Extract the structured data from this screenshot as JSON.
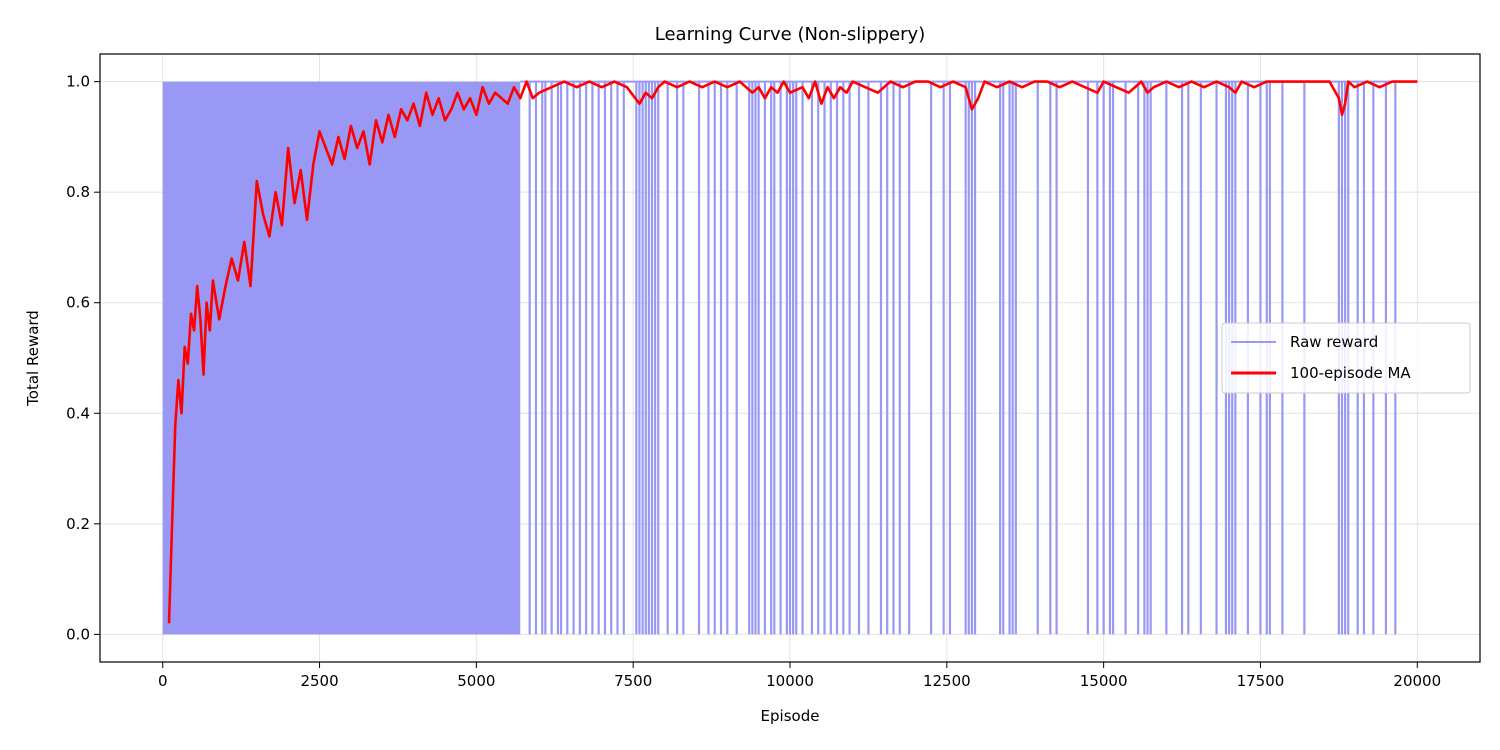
{
  "chart_data": {
    "type": "line",
    "title": "Learning Curve (Non-slippery)",
    "xlabel": "Episode",
    "ylabel": "Total Reward",
    "xlim": [
      -1000,
      21000
    ],
    "ylim": [
      -0.05,
      1.05
    ],
    "xticks": [
      0,
      2500,
      5000,
      7500,
      10000,
      12500,
      15000,
      17500,
      20000
    ],
    "xtick_labels": [
      "0",
      "2500",
      "5000",
      "7500",
      "10000",
      "12500",
      "15000",
      "17500",
      "20000"
    ],
    "yticks": [
      0.0,
      0.2,
      0.4,
      0.6,
      0.8,
      1.0
    ],
    "ytick_labels": [
      "0.0",
      "0.2",
      "0.4",
      "0.6",
      "0.8",
      "1.0"
    ],
    "grid": true,
    "legend_position": "center-right",
    "series": [
      {
        "name": "Raw reward",
        "color": "#9999f5",
        "style": "raw-binary-vlines",
        "dense_range": [
          0,
          5700
        ],
        "failure_episodes": [
          5850,
          5950,
          6050,
          6100,
          6200,
          6300,
          6350,
          6450,
          6550,
          6650,
          6750,
          6850,
          6950,
          7050,
          7150,
          7250,
          7350,
          7550,
          7600,
          7650,
          7700,
          7750,
          7800,
          7850,
          7900,
          8050,
          8200,
          8300,
          8550,
          8700,
          8800,
          8900,
          9000,
          9150,
          9350,
          9400,
          9450,
          9500,
          9600,
          9700,
          9750,
          9850,
          9950,
          10000,
          10050,
          10100,
          10200,
          10350,
          10450,
          10550,
          10650,
          10750,
          10850,
          10950,
          11100,
          11250,
          11450,
          11550,
          11650,
          11750,
          11900,
          12250,
          12450,
          12550,
          12800,
          12850,
          12900,
          12950,
          13350,
          13400,
          13500,
          13550,
          13600,
          13950,
          14150,
          14250,
          14750,
          14900,
          15000,
          15100,
          15150,
          15350,
          15550,
          15650,
          15700,
          15750,
          16000,
          16250,
          16350,
          16550,
          16800,
          16950,
          17000,
          17050,
          17100,
          17300,
          17500,
          17600,
          17650,
          17850,
          18200,
          18750,
          18800,
          18850,
          18900,
          19050,
          19150,
          19300,
          19500,
          19650
        ]
      },
      {
        "name": "100-episode MA",
        "color": "#ff0000",
        "x": [
          100,
          150,
          200,
          250,
          300,
          350,
          400,
          450,
          500,
          550,
          600,
          650,
          700,
          750,
          800,
          900,
          1000,
          1100,
          1200,
          1300,
          1400,
          1500,
          1600,
          1700,
          1800,
          1900,
          2000,
          2100,
          2200,
          2300,
          2400,
          2500,
          2600,
          2700,
          2800,
          2900,
          3000,
          3100,
          3200,
          3300,
          3400,
          3500,
          3600,
          3700,
          3800,
          3900,
          4000,
          4100,
          4200,
          4300,
          4400,
          4500,
          4600,
          4700,
          4800,
          4900,
          5000,
          5100,
          5200,
          5300,
          5400,
          5500,
          5600,
          5700,
          5800,
          5900,
          6000,
          6200,
          6400,
          6600,
          6800,
          7000,
          7200,
          7400,
          7600,
          7700,
          7800,
          7900,
          8000,
          8200,
          8400,
          8600,
          8800,
          9000,
          9200,
          9400,
          9500,
          9600,
          9700,
          9800,
          9900,
          10000,
          10200,
          10300,
          10400,
          10500,
          10600,
          10700,
          10800,
          10900,
          11000,
          11200,
          11400,
          11600,
          11800,
          12000,
          12200,
          12400,
          12600,
          12800,
          12900,
          13000,
          13100,
          13300,
          13500,
          13700,
          13900,
          14100,
          14300,
          14500,
          14700,
          14900,
          15000,
          15200,
          15400,
          15600,
          15700,
          15800,
          16000,
          16200,
          16400,
          16600,
          16800,
          17000,
          17100,
          17200,
          17400,
          17600,
          17800,
          18000,
          18200,
          18400,
          18600,
          18750,
          18800,
          18850,
          18900,
          19000,
          19200,
          19400,
          19600,
          19800,
          20000
        ],
        "values": [
          0.02,
          0.2,
          0.38,
          0.46,
          0.4,
          0.52,
          0.49,
          0.58,
          0.55,
          0.63,
          0.57,
          0.47,
          0.6,
          0.55,
          0.64,
          0.57,
          0.63,
          0.68,
          0.64,
          0.71,
          0.63,
          0.82,
          0.76,
          0.72,
          0.8,
          0.74,
          0.88,
          0.78,
          0.84,
          0.75,
          0.85,
          0.91,
          0.88,
          0.85,
          0.9,
          0.86,
          0.92,
          0.88,
          0.91,
          0.85,
          0.93,
          0.89,
          0.94,
          0.9,
          0.95,
          0.93,
          0.96,
          0.92,
          0.98,
          0.94,
          0.97,
          0.93,
          0.95,
          0.98,
          0.95,
          0.97,
          0.94,
          0.99,
          0.96,
          0.98,
          0.97,
          0.96,
          0.99,
          0.97,
          1.0,
          0.97,
          0.98,
          0.99,
          1.0,
          0.99,
          1.0,
          0.99,
          1.0,
          0.99,
          0.96,
          0.98,
          0.97,
          0.99,
          1.0,
          0.99,
          1.0,
          0.99,
          1.0,
          0.99,
          1.0,
          0.98,
          0.99,
          0.97,
          0.99,
          0.98,
          1.0,
          0.98,
          0.99,
          0.97,
          1.0,
          0.96,
          0.99,
          0.97,
          0.99,
          0.98,
          1.0,
          0.99,
          0.98,
          1.0,
          0.99,
          1.0,
          1.0,
          0.99,
          1.0,
          0.99,
          0.95,
          0.97,
          1.0,
          0.99,
          1.0,
          0.99,
          1.0,
          1.0,
          0.99,
          1.0,
          0.99,
          0.98,
          1.0,
          0.99,
          0.98,
          1.0,
          0.98,
          0.99,
          1.0,
          0.99,
          1.0,
          0.99,
          1.0,
          0.99,
          0.98,
          1.0,
          0.99,
          1.0,
          1.0,
          1.0,
          1.0,
          1.0,
          1.0,
          0.97,
          0.94,
          0.96,
          1.0,
          0.99,
          1.0,
          0.99,
          1.0,
          1.0,
          1.0
        ]
      }
    ]
  }
}
